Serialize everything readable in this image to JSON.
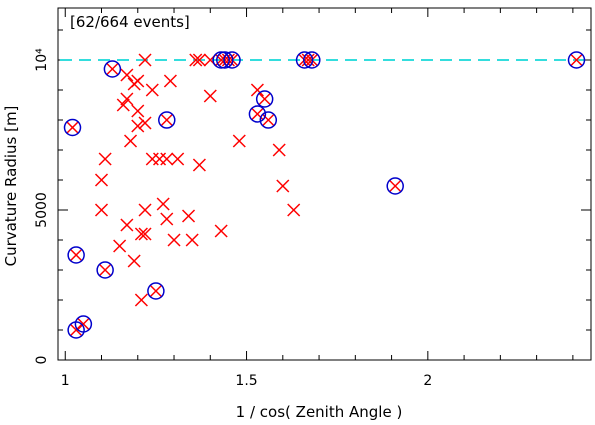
{
  "chart_data": {
    "type": "scatter",
    "title": "",
    "annotation": "[62/664 events]",
    "xlabel": "1 / cos( Zenith Angle )",
    "ylabel": "Curvature Radius [m]",
    "xlim": [
      0.98,
      2.45
    ],
    "ylim": [
      0,
      10000
    ],
    "x_ticks": [
      {
        "value": 1,
        "label": "1"
      },
      {
        "value": 1.5,
        "label": "1.5"
      },
      {
        "value": 2,
        "label": "2"
      }
    ],
    "y_ticks": [
      {
        "value": 0,
        "label": "0"
      },
      {
        "value": 5000,
        "label": "5000"
      },
      {
        "value": 10000,
        "label": "10⁴"
      }
    ],
    "reference_line": {
      "y": 10000,
      "style": "dashed",
      "color": "#33dddd"
    },
    "colors": {
      "cross": "#ff0000",
      "circle": "#0000cc"
    },
    "series": [
      {
        "marker": "cross",
        "points": [
          [
            1.02,
            7750
          ],
          [
            1.03,
            3500
          ],
          [
            1.03,
            1000
          ],
          [
            1.05,
            1200
          ],
          [
            1.1,
            6000
          ],
          [
            1.1,
            5000
          ],
          [
            1.11,
            6700
          ],
          [
            1.11,
            3000
          ],
          [
            1.13,
            9700
          ],
          [
            1.15,
            3800
          ],
          [
            1.16,
            8500
          ],
          [
            1.17,
            9500
          ],
          [
            1.17,
            8700
          ],
          [
            1.17,
            4500
          ],
          [
            1.18,
            7300
          ],
          [
            1.19,
            9200
          ],
          [
            1.19,
            3300
          ],
          [
            1.2,
            9300
          ],
          [
            1.2,
            8300
          ],
          [
            1.2,
            7800
          ],
          [
            1.21,
            4200
          ],
          [
            1.21,
            2000
          ],
          [
            1.22,
            10000
          ],
          [
            1.22,
            7900
          ],
          [
            1.22,
            5000
          ],
          [
            1.22,
            4200
          ],
          [
            1.24,
            9000
          ],
          [
            1.24,
            6700
          ],
          [
            1.25,
            2300
          ],
          [
            1.26,
            6700
          ],
          [
            1.27,
            5200
          ],
          [
            1.28,
            8000
          ],
          [
            1.28,
            4700
          ],
          [
            1.28,
            6700
          ],
          [
            1.29,
            9300
          ],
          [
            1.3,
            4000
          ],
          [
            1.31,
            6700
          ],
          [
            1.34,
            4800
          ],
          [
            1.35,
            4000
          ],
          [
            1.36,
            10000
          ],
          [
            1.37,
            10000
          ],
          [
            1.37,
            6500
          ],
          [
            1.4,
            10000
          ],
          [
            1.4,
            8800
          ],
          [
            1.43,
            10000
          ],
          [
            1.43,
            4300
          ],
          [
            1.45,
            10000
          ],
          [
            1.46,
            10000
          ],
          [
            1.48,
            7300
          ],
          [
            1.53,
            9000
          ],
          [
            1.53,
            8200
          ],
          [
            1.55,
            8700
          ],
          [
            1.56,
            8000
          ],
          [
            1.59,
            7000
          ],
          [
            1.6,
            5800
          ],
          [
            1.63,
            5000
          ],
          [
            1.66,
            10000
          ],
          [
            1.67,
            10000
          ],
          [
            1.68,
            10000
          ],
          [
            1.91,
            5800
          ],
          [
            2.41,
            10000
          ],
          [
            1.44,
            10000
          ]
        ]
      },
      {
        "marker": "circle",
        "points": [
          [
            1.02,
            7750
          ],
          [
            1.03,
            3500
          ],
          [
            1.03,
            1000
          ],
          [
            1.05,
            1200
          ],
          [
            1.11,
            3000
          ],
          [
            1.13,
            9700
          ],
          [
            1.25,
            2300
          ],
          [
            1.28,
            8000
          ],
          [
            1.43,
            10000
          ],
          [
            1.44,
            10000
          ],
          [
            1.46,
            10000
          ],
          [
            1.53,
            8200
          ],
          [
            1.55,
            8700
          ],
          [
            1.56,
            8000
          ],
          [
            1.66,
            10000
          ],
          [
            1.68,
            10000
          ],
          [
            1.91,
            5800
          ],
          [
            2.41,
            10000
          ]
        ]
      }
    ]
  }
}
